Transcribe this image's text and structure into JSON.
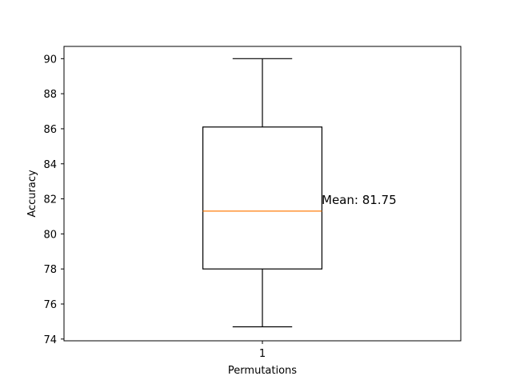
{
  "chart_data": {
    "type": "box",
    "title": "",
    "xlabel": "Permutations",
    "ylabel": "Accuracy",
    "categories": [
      "1"
    ],
    "ylim": [
      73.9,
      90.7
    ],
    "yticks": [
      74,
      76,
      78,
      80,
      82,
      84,
      86,
      88,
      90
    ],
    "yticklabels": [
      "74",
      "76",
      "78",
      "80",
      "82",
      "84",
      "86",
      "88",
      "90"
    ],
    "boxes": [
      {
        "label": "1",
        "whisker_low": 74.7,
        "q1": 78.0,
        "median": 81.3,
        "q3": 86.1,
        "whisker_high": 90.0
      }
    ],
    "annotation": "Mean: 81.75",
    "grid": false,
    "colors": {
      "box": "#000000",
      "median": "#ff7f0e",
      "frame": "#000000"
    }
  }
}
